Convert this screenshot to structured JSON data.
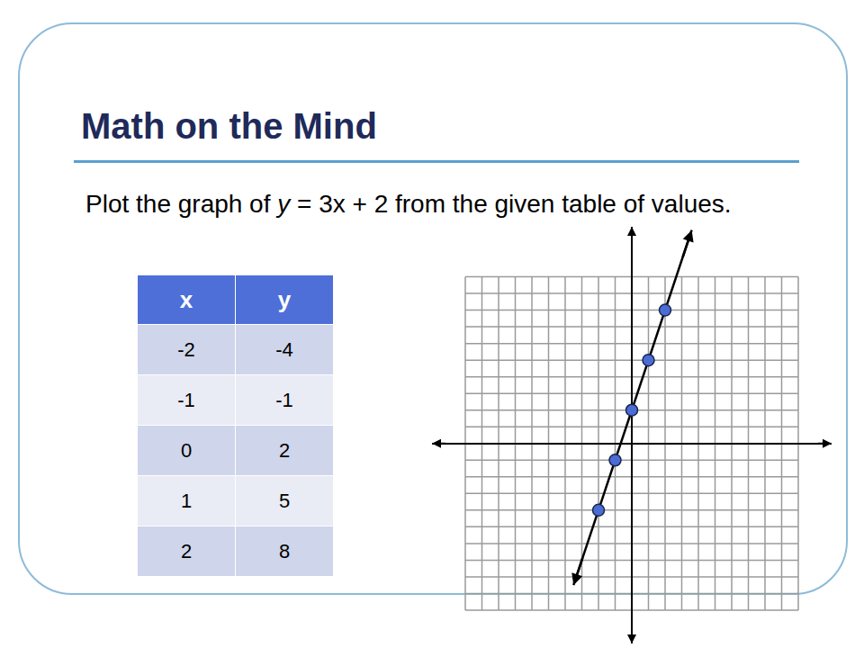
{
  "slide": {
    "title": "Math on the Mind",
    "instruction": "Plot the graph of y = 3x + 2 from the given table of values.",
    "table": {
      "header": [
        "x",
        "y"
      ],
      "rows": [
        [
          -2,
          -4
        ],
        [
          -1,
          -1
        ],
        [
          0,
          2
        ],
        [
          1,
          5
        ],
        [
          2,
          8
        ]
      ]
    }
  },
  "chart_data": {
    "type": "scatter",
    "series": [
      {
        "type": "line",
        "line_style": "solid",
        "marker": "arrow",
        "color": "#000000",
        "x": [
          -3.5,
          3.6
        ],
        "values": [
          -8.5,
          12.8
        ]
      },
      {
        "type": "scatter",
        "marker": "circle",
        "color": "#4a6cd4",
        "x": [
          -2,
          -1,
          0,
          1,
          2
        ],
        "values": [
          -4,
          -1,
          2,
          5,
          8
        ]
      }
    ],
    "xlim": [
      -12,
      12
    ],
    "ylim": [
      -12,
      13
    ],
    "xticks": [
      -10,
      -9,
      -8,
      -7,
      -6,
      -5,
      -4,
      -3,
      -2,
      -1,
      0,
      1,
      2,
      3,
      4,
      5,
      6,
      7,
      8,
      9,
      10
    ],
    "yticks": [
      -10,
      -9,
      -8,
      -7,
      -6,
      -5,
      -4,
      -3,
      -2,
      -1,
      0,
      1,
      2,
      3,
      4,
      5,
      6,
      7,
      8,
      9,
      10
    ],
    "grid": true,
    "tick_labels": false
  }
}
